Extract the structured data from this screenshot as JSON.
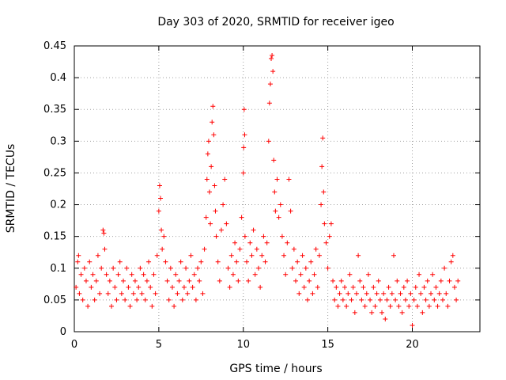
{
  "chart_data": {
    "type": "scatter",
    "title": "Day 303 of 2020, SRMTID for receiver igeo",
    "xlabel": "GPS time / hours",
    "ylabel": "SRMTID / TECUs",
    "xlim": [
      0,
      24
    ],
    "ylim": [
      0,
      0.45
    ],
    "xticks": [
      0,
      5,
      10,
      15,
      20
    ],
    "xtick_labels": [
      "0",
      "5",
      "10",
      "15",
      "20"
    ],
    "yticks": [
      0,
      0.05,
      0.1,
      0.15,
      0.2,
      0.25,
      0.3,
      0.35,
      0.4,
      0.45
    ],
    "ytick_labels": [
      "0",
      "0.05",
      "0.1",
      "0.15",
      "0.2",
      "0.25",
      "0.3",
      "0.35",
      "0.4",
      "0.45"
    ],
    "grid": true,
    "marker": "+",
    "color": "#ff0000",
    "series": [
      {
        "name": "SRMTID",
        "points": [
          [
            0.1,
            0.07
          ],
          [
            0.2,
            0.11
          ],
          [
            0.25,
            0.12
          ],
          [
            0.3,
            0.06
          ],
          [
            0.4,
            0.09
          ],
          [
            0.5,
            0.05
          ],
          [
            0.6,
            0.1
          ],
          [
            0.7,
            0.08
          ],
          [
            0.8,
            0.04
          ],
          [
            0.9,
            0.11
          ],
          [
            1.0,
            0.07
          ],
          [
            1.1,
            0.09
          ],
          [
            1.2,
            0.05
          ],
          [
            1.3,
            0.08
          ],
          [
            1.4,
            0.12
          ],
          [
            1.5,
            0.06
          ],
          [
            1.6,
            0.1
          ],
          [
            1.7,
            0.16
          ],
          [
            1.75,
            0.155
          ],
          [
            1.8,
            0.13
          ],
          [
            1.9,
            0.09
          ],
          [
            2.0,
            0.06
          ],
          [
            2.1,
            0.08
          ],
          [
            2.2,
            0.04
          ],
          [
            2.3,
            0.1
          ],
          [
            2.4,
            0.07
          ],
          [
            2.5,
            0.05
          ],
          [
            2.6,
            0.09
          ],
          [
            2.7,
            0.11
          ],
          [
            2.8,
            0.06
          ],
          [
            2.9,
            0.08
          ],
          [
            3.0,
            0.05
          ],
          [
            3.1,
            0.1
          ],
          [
            3.2,
            0.07
          ],
          [
            3.3,
            0.04
          ],
          [
            3.4,
            0.09
          ],
          [
            3.5,
            0.06
          ],
          [
            3.6,
            0.08
          ],
          [
            3.7,
            0.05
          ],
          [
            3.8,
            0.07
          ],
          [
            3.9,
            0.1
          ],
          [
            4.0,
            0.06
          ],
          [
            4.1,
            0.09
          ],
          [
            4.2,
            0.05
          ],
          [
            4.3,
            0.08
          ],
          [
            4.4,
            0.11
          ],
          [
            4.5,
            0.07
          ],
          [
            4.6,
            0.04
          ],
          [
            4.7,
            0.09
          ],
          [
            4.8,
            0.06
          ],
          [
            4.9,
            0.12
          ],
          [
            5.0,
            0.19
          ],
          [
            5.05,
            0.23
          ],
          [
            5.1,
            0.21
          ],
          [
            5.15,
            0.16
          ],
          [
            5.2,
            0.13
          ],
          [
            5.3,
            0.15
          ],
          [
            5.4,
            0.11
          ],
          [
            5.5,
            0.08
          ],
          [
            5.6,
            0.05
          ],
          [
            5.7,
            0.1
          ],
          [
            5.8,
            0.07
          ],
          [
            5.9,
            0.04
          ],
          [
            6.0,
            0.09
          ],
          [
            6.1,
            0.06
          ],
          [
            6.2,
            0.08
          ],
          [
            6.3,
            0.11
          ],
          [
            6.4,
            0.05
          ],
          [
            6.5,
            0.07
          ],
          [
            6.6,
            0.1
          ],
          [
            6.7,
            0.06
          ],
          [
            6.8,
            0.08
          ],
          [
            6.9,
            0.12
          ],
          [
            7.0,
            0.07
          ],
          [
            7.1,
            0.09
          ],
          [
            7.2,
            0.05
          ],
          [
            7.3,
            0.1
          ],
          [
            7.4,
            0.08
          ],
          [
            7.5,
            0.11
          ],
          [
            7.6,
            0.06
          ],
          [
            7.7,
            0.13
          ],
          [
            7.8,
            0.18
          ],
          [
            7.85,
            0.24
          ],
          [
            7.9,
            0.28
          ],
          [
            7.95,
            0.3
          ],
          [
            8.0,
            0.22
          ],
          [
            8.05,
            0.17
          ],
          [
            8.1,
            0.26
          ],
          [
            8.15,
            0.33
          ],
          [
            8.2,
            0.355
          ],
          [
            8.25,
            0.31
          ],
          [
            8.3,
            0.23
          ],
          [
            8.35,
            0.19
          ],
          [
            8.4,
            0.15
          ],
          [
            8.5,
            0.11
          ],
          [
            8.6,
            0.08
          ],
          [
            8.7,
            0.16
          ],
          [
            8.8,
            0.2
          ],
          [
            8.9,
            0.24
          ],
          [
            9.0,
            0.17
          ],
          [
            9.1,
            0.1
          ],
          [
            9.2,
            0.07
          ],
          [
            9.3,
            0.12
          ],
          [
            9.4,
            0.09
          ],
          [
            9.5,
            0.14
          ],
          [
            9.6,
            0.11
          ],
          [
            9.7,
            0.08
          ],
          [
            9.8,
            0.13
          ],
          [
            9.9,
            0.18
          ],
          [
            10.0,
            0.25
          ],
          [
            10.02,
            0.29
          ],
          [
            10.05,
            0.35
          ],
          [
            10.08,
            0.31
          ],
          [
            10.1,
            0.15
          ],
          [
            10.2,
            0.11
          ],
          [
            10.3,
            0.08
          ],
          [
            10.4,
            0.14
          ],
          [
            10.5,
            0.12
          ],
          [
            10.6,
            0.16
          ],
          [
            10.7,
            0.09
          ],
          [
            10.8,
            0.13
          ],
          [
            10.9,
            0.1
          ],
          [
            11.0,
            0.07
          ],
          [
            11.1,
            0.12
          ],
          [
            11.2,
            0.15
          ],
          [
            11.3,
            0.11
          ],
          [
            11.4,
            0.14
          ],
          [
            11.5,
            0.3
          ],
          [
            11.55,
            0.36
          ],
          [
            11.6,
            0.39
          ],
          [
            11.65,
            0.43
          ],
          [
            11.7,
            0.435
          ],
          [
            11.75,
            0.41
          ],
          [
            11.8,
            0.27
          ],
          [
            11.85,
            0.22
          ],
          [
            11.9,
            0.19
          ],
          [
            12.0,
            0.24
          ],
          [
            12.1,
            0.18
          ],
          [
            12.2,
            0.2
          ],
          [
            12.3,
            0.15
          ],
          [
            12.4,
            0.12
          ],
          [
            12.5,
            0.09
          ],
          [
            12.6,
            0.14
          ],
          [
            12.7,
            0.24
          ],
          [
            12.8,
            0.19
          ],
          [
            12.9,
            0.1
          ],
          [
            13.0,
            0.13
          ],
          [
            13.1,
            0.08
          ],
          [
            13.2,
            0.11
          ],
          [
            13.3,
            0.06
          ],
          [
            13.4,
            0.09
          ],
          [
            13.5,
            0.12
          ],
          [
            13.6,
            0.07
          ],
          [
            13.7,
            0.1
          ],
          [
            13.8,
            0.05
          ],
          [
            13.9,
            0.08
          ],
          [
            14.0,
            0.11
          ],
          [
            14.1,
            0.06
          ],
          [
            14.2,
            0.09
          ],
          [
            14.3,
            0.13
          ],
          [
            14.4,
            0.07
          ],
          [
            14.5,
            0.12
          ],
          [
            14.6,
            0.2
          ],
          [
            14.65,
            0.26
          ],
          [
            14.7,
            0.305
          ],
          [
            14.75,
            0.22
          ],
          [
            14.8,
            0.17
          ],
          [
            14.9,
            0.14
          ],
          [
            15.0,
            0.1
          ],
          [
            15.1,
            0.15
          ],
          [
            15.2,
            0.17
          ],
          [
            15.3,
            0.08
          ],
          [
            15.4,
            0.05
          ],
          [
            15.5,
            0.07
          ],
          [
            15.6,
            0.04
          ],
          [
            15.7,
            0.06
          ],
          [
            15.8,
            0.08
          ],
          [
            15.9,
            0.05
          ],
          [
            16.0,
            0.07
          ],
          [
            16.1,
            0.04
          ],
          [
            16.2,
            0.06
          ],
          [
            16.3,
            0.09
          ],
          [
            16.4,
            0.05
          ],
          [
            16.5,
            0.07
          ],
          [
            16.6,
            0.03
          ],
          [
            16.7,
            0.06
          ],
          [
            16.8,
            0.12
          ],
          [
            16.9,
            0.08
          ],
          [
            17.0,
            0.05
          ],
          [
            17.1,
            0.07
          ],
          [
            17.2,
            0.04
          ],
          [
            17.3,
            0.06
          ],
          [
            17.4,
            0.09
          ],
          [
            17.5,
            0.05
          ],
          [
            17.6,
            0.03
          ],
          [
            17.7,
            0.07
          ],
          [
            17.8,
            0.04
          ],
          [
            17.9,
            0.06
          ],
          [
            18.0,
            0.08
          ],
          [
            18.1,
            0.05
          ],
          [
            18.2,
            0.03
          ],
          [
            18.3,
            0.06
          ],
          [
            18.4,
            0.02
          ],
          [
            18.5,
            0.05
          ],
          [
            18.6,
            0.07
          ],
          [
            18.7,
            0.04
          ],
          [
            18.8,
            0.06
          ],
          [
            18.9,
            0.12
          ],
          [
            19.0,
            0.05
          ],
          [
            19.1,
            0.08
          ],
          [
            19.2,
            0.04
          ],
          [
            19.3,
            0.06
          ],
          [
            19.4,
            0.03
          ],
          [
            19.5,
            0.07
          ],
          [
            19.6,
            0.05
          ],
          [
            19.7,
            0.08
          ],
          [
            19.8,
            0.04
          ],
          [
            19.9,
            0.06
          ],
          [
            20.0,
            0.01
          ],
          [
            20.1,
            0.05
          ],
          [
            20.2,
            0.07
          ],
          [
            20.3,
            0.04
          ],
          [
            20.4,
            0.09
          ],
          [
            20.5,
            0.06
          ],
          [
            20.6,
            0.03
          ],
          [
            20.7,
            0.07
          ],
          [
            20.8,
            0.05
          ],
          [
            20.9,
            0.08
          ],
          [
            21.0,
            0.04
          ],
          [
            21.1,
            0.06
          ],
          [
            21.2,
            0.09
          ],
          [
            21.3,
            0.05
          ],
          [
            21.4,
            0.07
          ],
          [
            21.5,
            0.04
          ],
          [
            21.6,
            0.06
          ],
          [
            21.7,
            0.08
          ],
          [
            21.8,
            0.05
          ],
          [
            21.9,
            0.1
          ],
          [
            22.0,
            0.06
          ],
          [
            22.1,
            0.04
          ],
          [
            22.2,
            0.08
          ],
          [
            22.3,
            0.11
          ],
          [
            22.4,
            0.12
          ],
          [
            22.5,
            0.07
          ],
          [
            22.6,
            0.05
          ],
          [
            22.7,
            0.08
          ]
        ]
      }
    ]
  }
}
